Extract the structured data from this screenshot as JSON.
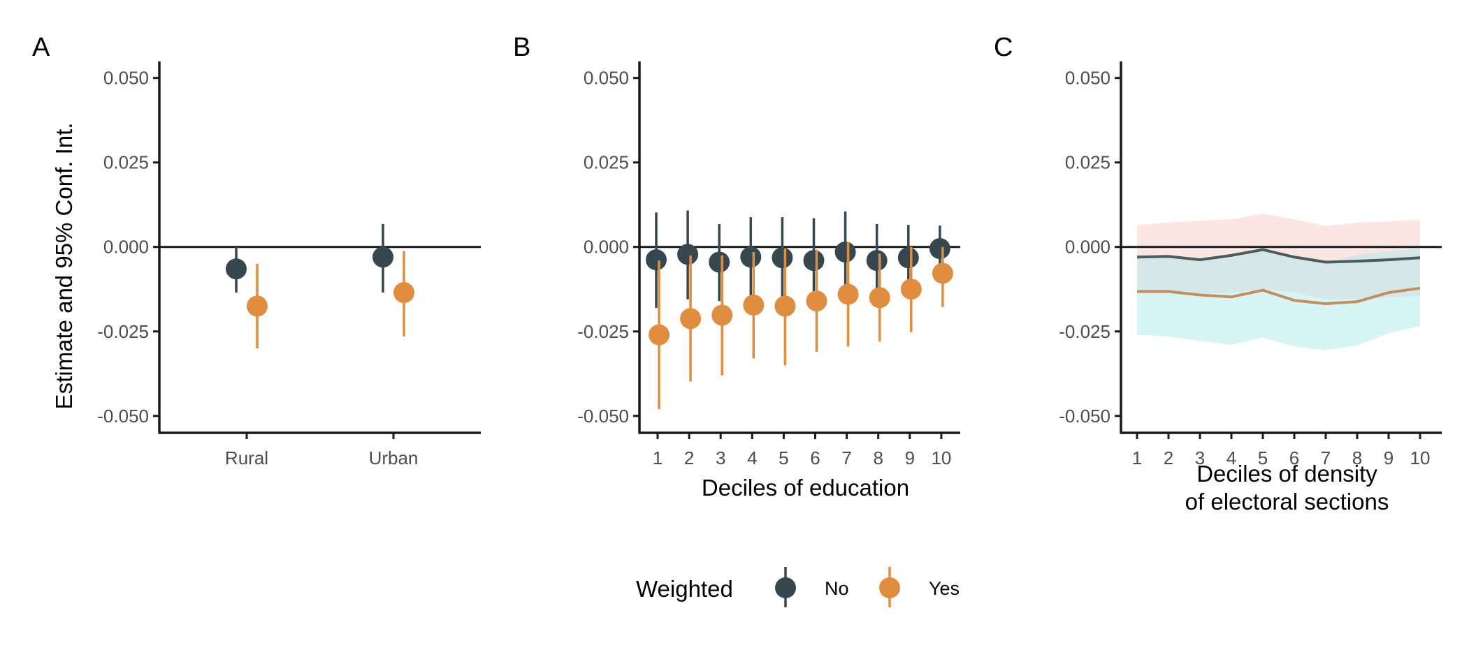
{
  "colors": {
    "no": "#36474f",
    "yes": "#e08d40",
    "no_line": "#4a5c5c",
    "yes_line": "#c09060",
    "band_no": "#f8c8c4",
    "band_yes": "#a8e8ec",
    "axis": "#1a1a1a"
  },
  "legend": {
    "title": "Weighted",
    "items": [
      {
        "key": "no",
        "label": "No"
      },
      {
        "key": "yes",
        "label": "Yes"
      }
    ]
  },
  "chart_data": [
    {
      "panel": "A",
      "type": "scatter",
      "title": "",
      "xlabel": "",
      "ylabel": "Estimate and 95% Conf. Int.",
      "ylim": [
        -0.055,
        0.052
      ],
      "yticks": [
        "0.050",
        "0.025",
        "0.000",
        "-0.025",
        "-0.050"
      ],
      "categories": [
        "Rural",
        "Urban"
      ],
      "series": [
        {
          "name": "No",
          "values": [
            -0.0065,
            -0.003
          ],
          "lower": [
            -0.0135,
            -0.0135
          ],
          "upper": [
            0.0,
            0.0068
          ]
        },
        {
          "name": "Yes",
          "values": [
            -0.0175,
            -0.0135
          ],
          "lower": [
            -0.03,
            -0.0265
          ],
          "upper": [
            -0.005,
            -0.0012
          ]
        }
      ]
    },
    {
      "panel": "B",
      "type": "scatter",
      "title": "",
      "xlabel": "Deciles of education",
      "ylabel": "",
      "ylim": [
        -0.055,
        0.052
      ],
      "yticks": [
        "0.050",
        "0.025",
        "0.000",
        "-0.025",
        "-0.050"
      ],
      "categories": [
        "1",
        "2",
        "3",
        "4",
        "5",
        "6",
        "7",
        "8",
        "9",
        "10"
      ],
      "series": [
        {
          "name": "No",
          "values": [
            -0.0038,
            -0.0022,
            -0.0045,
            -0.003,
            -0.0032,
            -0.004,
            -0.0015,
            -0.004,
            -0.0032,
            -0.0005
          ],
          "lower": [
            -0.018,
            -0.0155,
            -0.016,
            -0.015,
            -0.0155,
            -0.0155,
            -0.013,
            -0.0145,
            -0.013,
            -0.006
          ],
          "upper": [
            0.0102,
            0.0108,
            0.0068,
            0.0088,
            0.0088,
            0.0085,
            0.0105,
            0.0068,
            0.0065,
            0.0063
          ]
        },
        {
          "name": "Yes",
          "values": [
            -0.026,
            -0.0212,
            -0.0202,
            -0.0172,
            -0.0175,
            -0.016,
            -0.014,
            -0.015,
            -0.0125,
            -0.0078
          ],
          "lower": [
            -0.048,
            -0.0398,
            -0.038,
            -0.033,
            -0.035,
            -0.031,
            -0.0295,
            -0.028,
            -0.0252,
            -0.0178
          ],
          "upper": [
            -0.004,
            -0.0025,
            -0.0025,
            -0.0015,
            -0.0005,
            -0.0008,
            0.0015,
            -0.002,
            0.0,
            0.0
          ]
        }
      ]
    },
    {
      "panel": "C",
      "type": "line",
      "title": "",
      "xlabel": "Deciles of density\nof electoral sections",
      "ylabel": "",
      "ylim": [
        -0.055,
        0.052
      ],
      "yticks": [
        "0.050",
        "0.025",
        "0.000",
        "-0.025",
        "-0.050"
      ],
      "categories": [
        "1",
        "2",
        "3",
        "4",
        "5",
        "6",
        "7",
        "8",
        "9",
        "10"
      ],
      "series": [
        {
          "name": "No",
          "values": [
            -0.003,
            -0.0028,
            -0.0038,
            -0.0025,
            -0.0008,
            -0.003,
            -0.0045,
            -0.0042,
            -0.0038,
            -0.0032
          ],
          "lower": [
            -0.013,
            -0.013,
            -0.014,
            -0.0135,
            -0.0125,
            -0.0135,
            -0.0155,
            -0.0155,
            -0.015,
            -0.0145
          ],
          "upper": [
            0.0065,
            0.0072,
            0.0078,
            0.0082,
            0.0098,
            0.0082,
            0.0062,
            0.0072,
            0.0075,
            0.0082
          ]
        },
        {
          "name": "Yes",
          "values": [
            -0.0132,
            -0.0132,
            -0.0142,
            -0.0148,
            -0.0128,
            -0.0158,
            -0.0168,
            -0.0162,
            -0.0135,
            -0.0122
          ],
          "lower": [
            -0.026,
            -0.0265,
            -0.0278,
            -0.029,
            -0.0268,
            -0.0295,
            -0.0305,
            -0.0292,
            -0.0255,
            -0.0235
          ],
          "upper": [
            -0.0032,
            -0.003,
            -0.0038,
            -0.0032,
            -0.0012,
            -0.0032,
            -0.0048,
            -0.0022,
            -0.0012,
            -0.0005
          ]
        }
      ]
    }
  ]
}
